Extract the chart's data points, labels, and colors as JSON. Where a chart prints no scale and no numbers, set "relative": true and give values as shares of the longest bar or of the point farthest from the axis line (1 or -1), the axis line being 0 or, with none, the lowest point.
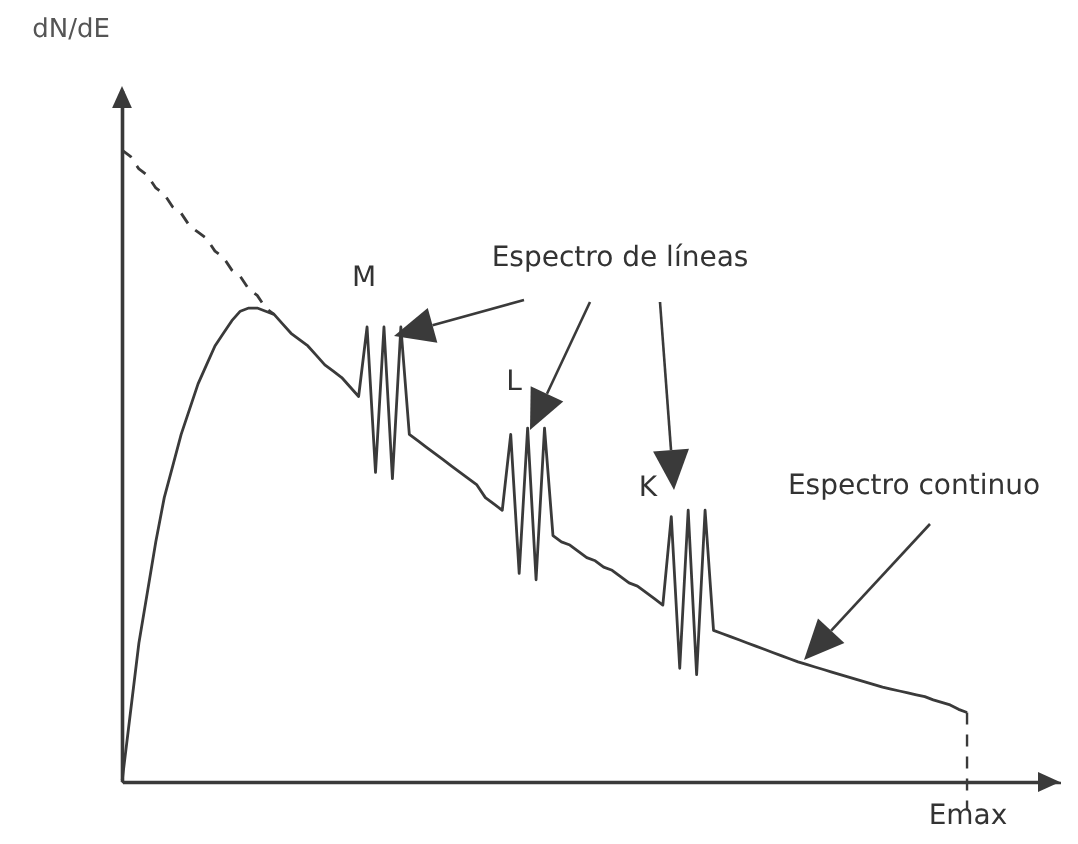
{
  "chart_data": {
    "type": "line",
    "relative": true,
    "ylabel": "dN/dE",
    "categories": [
      null,
      null,
      null,
      null,
      null,
      null,
      null,
      null,
      null,
      null,
      null,
      null,
      null,
      null,
      null,
      null,
      null,
      null,
      null,
      null,
      null,
      null,
      null,
      null,
      null,
      null,
      null,
      null,
      null,
      null,
      null,
      null,
      null,
      null,
      null,
      null,
      null,
      null,
      null,
      null,
      null,
      null,
      null,
      null,
      null,
      null,
      null,
      null,
      null,
      null,
      null,
      null,
      null,
      null,
      null,
      null,
      null,
      null,
      null,
      null,
      null,
      null,
      null,
      null,
      null,
      null,
      null,
      null,
      null,
      null,
      null,
      null,
      null,
      null,
      null,
      null,
      null,
      null,
      null,
      null,
      null,
      null,
      null,
      null,
      null,
      null,
      null,
      null,
      null,
      null,
      null,
      null,
      null,
      null,
      null,
      null,
      null,
      null,
      null,
      null,
      null
    ],
    "series": [
      {
        "color": "#3a3a3a",
        "line_style": "solid",
        "values": [
          0,
          0.11,
          0.22,
          0.3,
          0.38,
          0.45,
          0.5,
          0.55,
          0.59,
          0.63,
          0.66,
          0.69,
          0.71,
          0.73,
          0.745,
          0.75,
          0.75,
          0.745,
          0.74,
          0.725,
          0.71,
          0.7,
          0.69,
          0.675,
          0.66,
          0.65,
          0.64,
          0.625,
          0.61,
          0.72,
          0.49,
          0.72,
          0.48,
          0.72,
          0.55,
          0.54,
          0.53,
          0.52,
          0.51,
          0.5,
          0.49,
          0.48,
          0.47,
          0.45,
          0.44,
          0.43,
          0.55,
          0.33,
          0.56,
          0.32,
          0.56,
          0.39,
          0.38,
          0.375,
          0.365,
          0.355,
          0.35,
          0.34,
          0.335,
          0.325,
          0.315,
          0.31,
          0.3,
          0.29,
          0.28,
          0.42,
          0.18,
          0.43,
          0.17,
          0.43,
          0.24,
          0.235,
          0.23,
          0.225,
          0.22,
          0.215,
          0.21,
          0.205,
          0.2,
          0.195,
          0.19,
          0.186,
          0.182,
          0.178,
          0.174,
          0.17,
          0.166,
          0.162,
          0.158,
          0.154,
          0.15,
          0.147,
          0.144,
          0.141,
          0.138,
          0.135,
          0.13,
          0.126,
          0.122,
          0.115,
          0.11
        ]
      },
      {
        "color": "#3a3a3a",
        "line_style": "dashed",
        "values": [
          1,
          0.99,
          0.97,
          0.96,
          0.94,
          0.93,
          0.91,
          0.9,
          0.88,
          0.87,
          0.86,
          0.84,
          0.83,
          0.81,
          0.8,
          0.78,
          0.77,
          0.75,
          0.74,
          null,
          null,
          null,
          null,
          null,
          null,
          null,
          null,
          null,
          null,
          null,
          null,
          null,
          null,
          null,
          null,
          null,
          null,
          null,
          null,
          null,
          null,
          null,
          null,
          null,
          null,
          null,
          null,
          null,
          null,
          null,
          null,
          null,
          null,
          null,
          null,
          null,
          null,
          null,
          null,
          null,
          null,
          null,
          null,
          null,
          null,
          null,
          null,
          null,
          null,
          null,
          null,
          null,
          null,
          null,
          null,
          null,
          null,
          null,
          null,
          null,
          null,
          null,
          null,
          null,
          null,
          null,
          null,
          null,
          null,
          null,
          null,
          null,
          null,
          null,
          null,
          null,
          null,
          null,
          null,
          null,
          null
        ]
      }
    ],
    "annotations": [
      "M",
      "L",
      "K",
      "Espectro de líneas",
      "Espectro continuo",
      "Emax"
    ]
  }
}
